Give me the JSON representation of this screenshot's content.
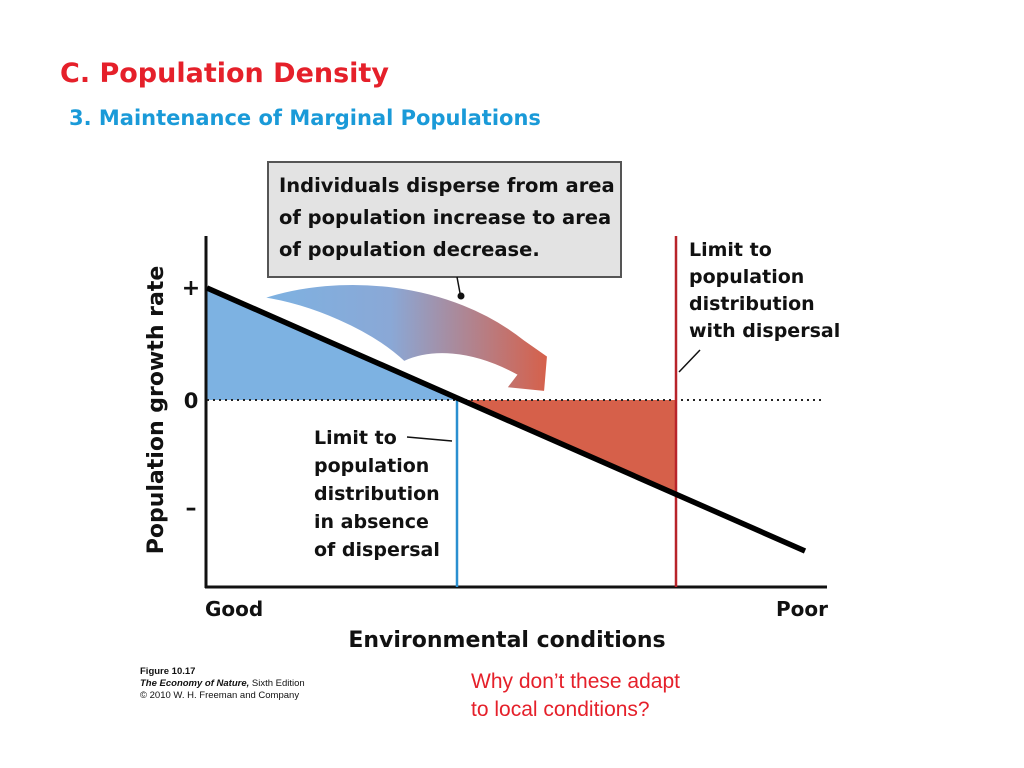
{
  "slide": {
    "title": "C. Population Density",
    "subtitle": "3. Maintenance of Marginal Populations",
    "question_line1": "Why don’t these adapt",
    "question_line2": "to local conditions?"
  },
  "figure": {
    "callout": [
      "Individuals disperse from area",
      "of population increase to area",
      "of population decrease."
    ],
    "y_axis_label": "Population growth rate",
    "y_ticks": [
      "+",
      "0",
      "–"
    ],
    "x_axis_label": "Environmental conditions",
    "x_left": "Good",
    "x_right": "Poor",
    "label_with_dispersal": [
      "Limit to",
      "population",
      "distribution",
      "with dispersal"
    ],
    "label_without_dispersal": [
      "Limit to",
      "population",
      "distribution",
      "in absence",
      "of dispersal"
    ],
    "colors": {
      "increase_area": "#7db2e2",
      "decrease_area": "#d6604a",
      "blue_limit": "#2a8fd0",
      "red_limit": "#b8242a",
      "callout_bg": "#e3e3e3"
    }
  },
  "source": {
    "line1": "Figure 10.17",
    "line2_italic": "The Economy of Nature,",
    "line2_rest": " Sixth Edition",
    "line3": "© 2010 W. H. Freeman and Company"
  }
}
